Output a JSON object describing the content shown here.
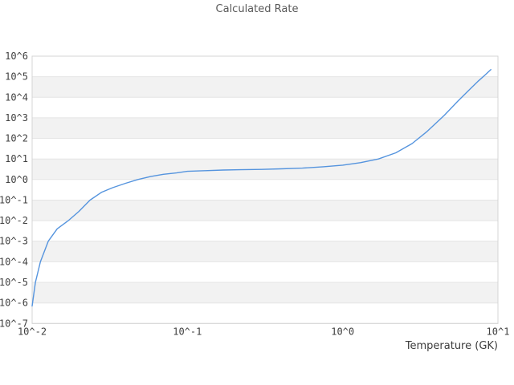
{
  "chart_data": {
    "type": "line",
    "title": "Calculated Rate",
    "xlabel": "Temperature (GK)",
    "ylabel": "",
    "x_scale": "log",
    "y_scale": "log",
    "xlim": [
      0.01,
      10
    ],
    "ylim": [
      1e-07,
      1000000.0
    ],
    "x_ticks": [
      0.01,
      0.1,
      1,
      10
    ],
    "x_tick_labels": [
      "10^-2",
      "10^-1",
      "10^0",
      "10^1"
    ],
    "y_tick_labels": [
      "10^6",
      "10^5",
      "10^4",
      "10^3",
      "10^2",
      "10^1",
      "10^0",
      "10^-1",
      "10^-2",
      "10^-3",
      "10^-4",
      "10^-5",
      "10^-6",
      "10^-7"
    ],
    "grid": "horizontal-only",
    "background_bands": "alternating-white-gray",
    "legend": "none",
    "series": [
      {
        "name": "calculated-rate",
        "color": "#5594de",
        "x": [
          0.01,
          0.0105,
          0.0113,
          0.0127,
          0.0145,
          0.0171,
          0.02,
          0.0236,
          0.028,
          0.033,
          0.04,
          0.048,
          0.058,
          0.07,
          0.085,
          0.1,
          0.13,
          0.17,
          0.22,
          0.3,
          0.4,
          0.55,
          0.75,
          1.0,
          1.3,
          1.7,
          2.2,
          2.8,
          3.5,
          4.5,
          5.5,
          6.5,
          7.5,
          8.3,
          9.0
        ],
        "y": [
          7.1e-07,
          1e-05,
          0.0001,
          0.001,
          0.004,
          0.01,
          0.028,
          0.1,
          0.24,
          0.4,
          0.66,
          1.0,
          1.4,
          1.8,
          2.1,
          2.5,
          2.7,
          2.9,
          3.0,
          3.1,
          3.3,
          3.6,
          4.2,
          5.0,
          6.6,
          10,
          20,
          56,
          220,
          1300,
          6300,
          22000,
          63000,
          126000,
          224000
        ]
      }
    ]
  },
  "colors": {
    "band_gray": "#f2f2f2",
    "band_white": "#ffffff",
    "gridline": "#e4e4e4",
    "border": "#d4d4d4",
    "line_blue": "#5594de",
    "title_text": "#595959",
    "tick_text": "#404040"
  }
}
